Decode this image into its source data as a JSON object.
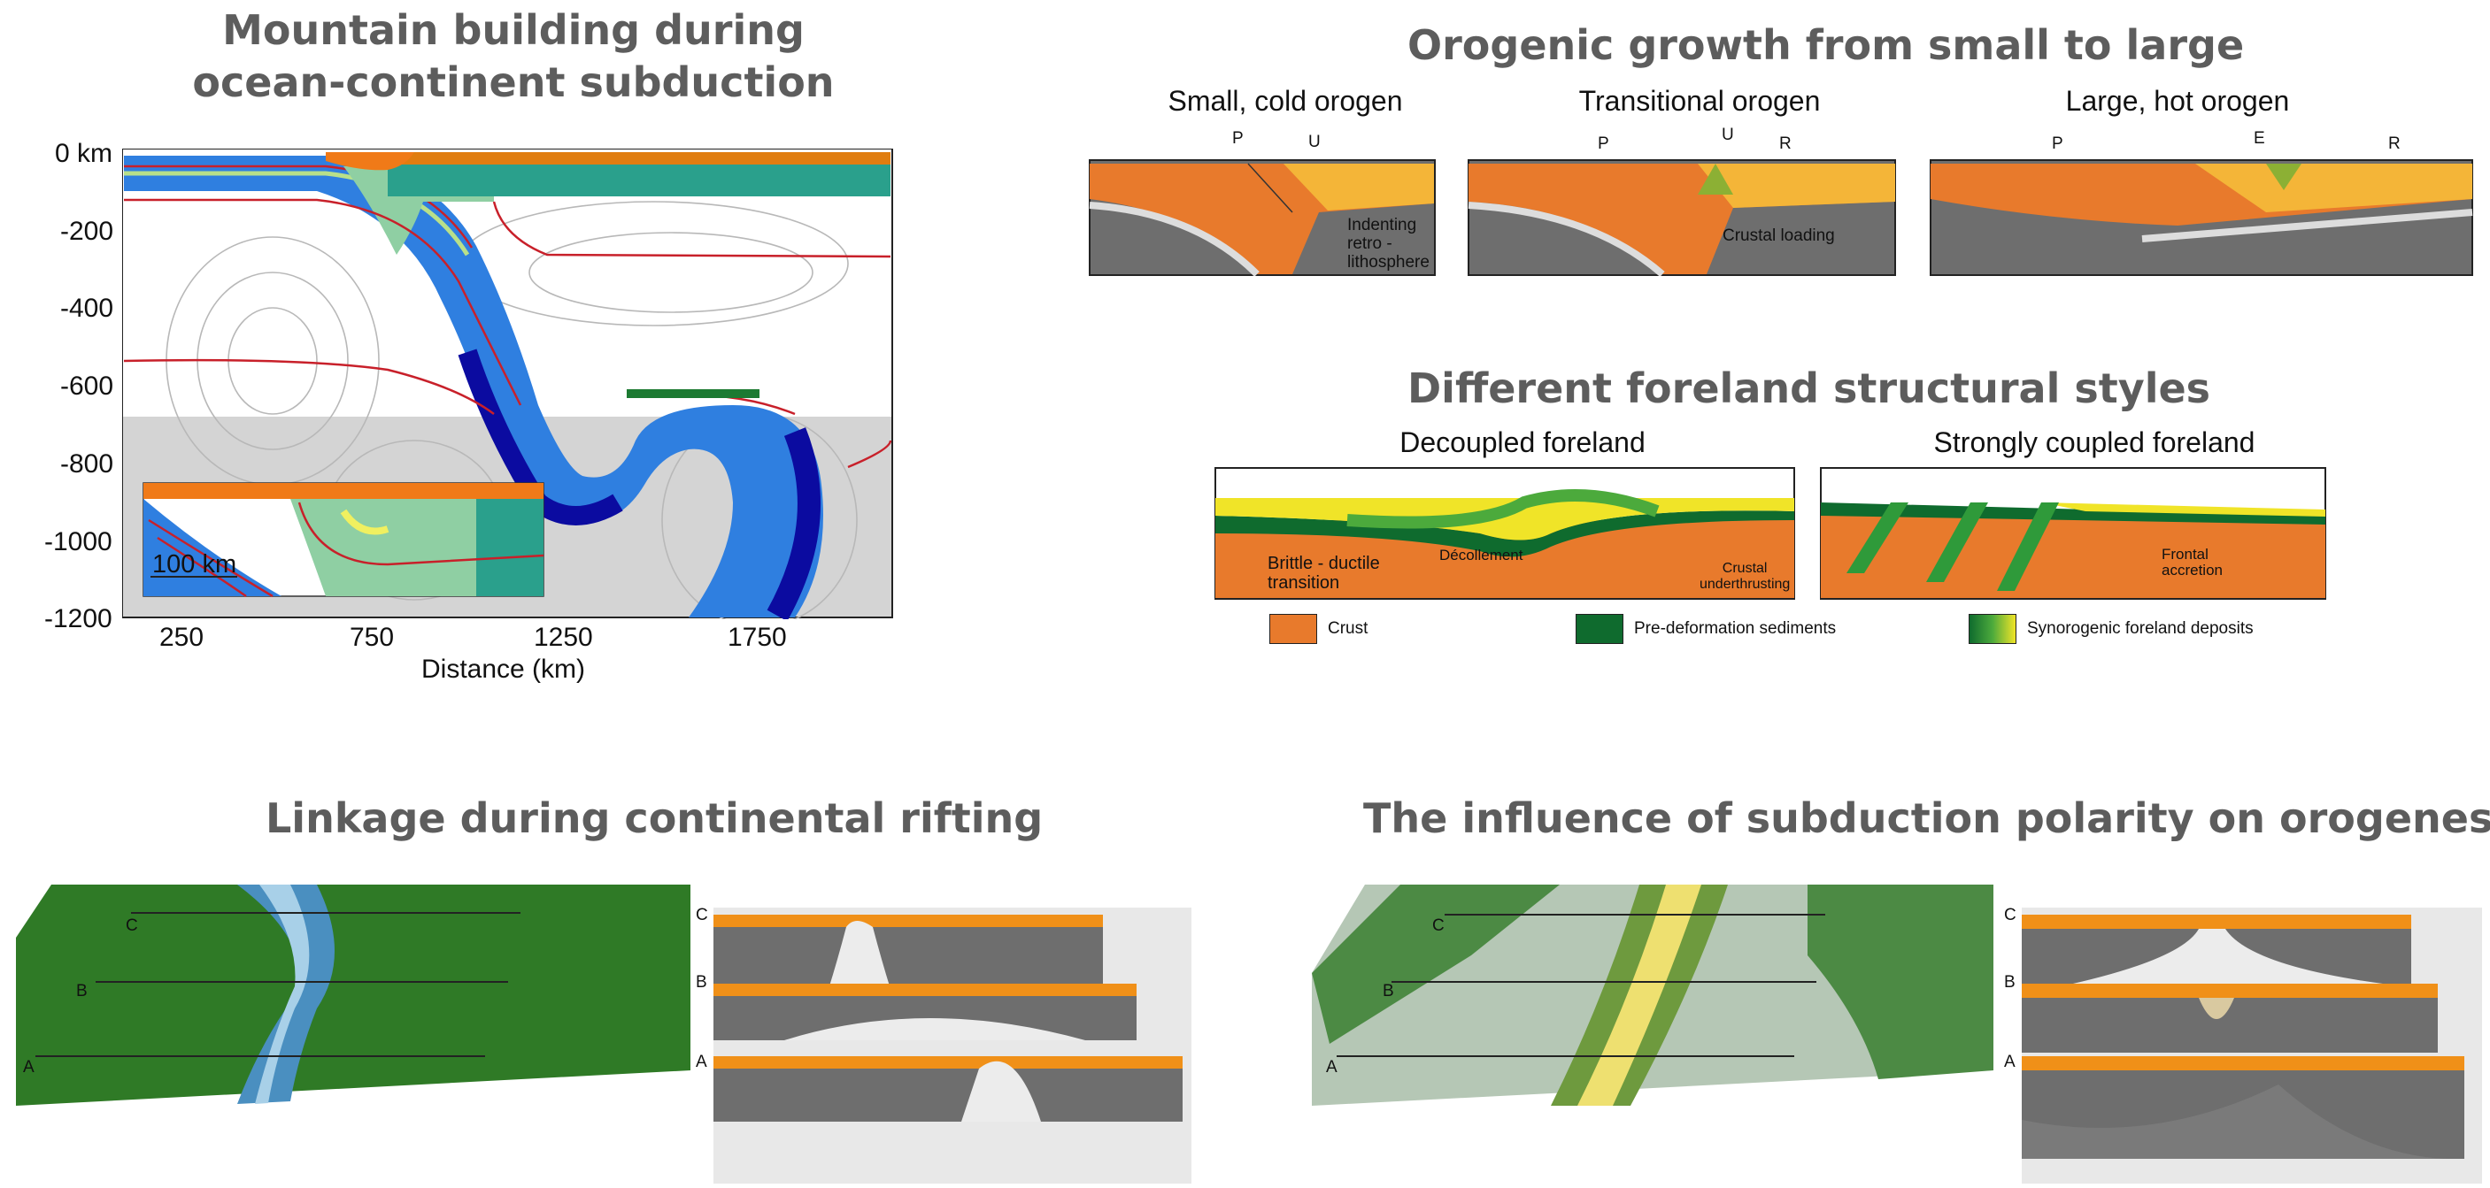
{
  "mountain": {
    "title_line1": "Mountain building during",
    "title_line2": "ocean-continent subduction",
    "y_ticks": [
      "0 km",
      "-200",
      "-400",
      "-600",
      "-800",
      "-1000",
      "-1200"
    ],
    "x_ticks": [
      "250",
      "750",
      "1250",
      "1750"
    ],
    "x_label": "Distance (km)",
    "scale_label": "100 km"
  },
  "orogenic": {
    "title": "Orogenic growth from small to large",
    "panels": [
      {
        "title": "Small, cold orogen",
        "labels": [
          "P",
          "U",
          "Indenting",
          "retro -",
          "lithosphere"
        ]
      },
      {
        "title": "Transitional orogen",
        "labels": [
          "P",
          "U",
          "R",
          "Crustal loading"
        ]
      },
      {
        "title": "Large, hot orogen",
        "labels": [
          "P",
          "E",
          "R"
        ]
      }
    ]
  },
  "foreland": {
    "title": "Different foreland structural styles",
    "left_title": "Decoupled foreland",
    "right_title": "Strongly coupled foreland",
    "left_labels": [
      "Brittle - ductile",
      "transition",
      "Décollement",
      "Crustal",
      "underthrusting"
    ],
    "right_labels": [
      "Frontal",
      "accretion"
    ],
    "legend": [
      "Crust",
      "Pre-deformation sediments",
      "Synorogenic foreland deposits"
    ]
  },
  "rifting": {
    "title": "Linkage during continental rifting",
    "profile_labels": [
      "C",
      "B",
      "A"
    ]
  },
  "polarity": {
    "title": "The influence of subduction polarity on orogenesis",
    "profile_labels": [
      "C",
      "B",
      "A"
    ]
  },
  "colors": {
    "title_gray": "#5d5d5d",
    "crust_orange": "#e87a2c",
    "sediment_green": "#0f6b2e",
    "foreland_yellow": "#f0e428",
    "mantle_gray": "#6e6e6e",
    "ocean_blue": "#2f7fe0"
  }
}
